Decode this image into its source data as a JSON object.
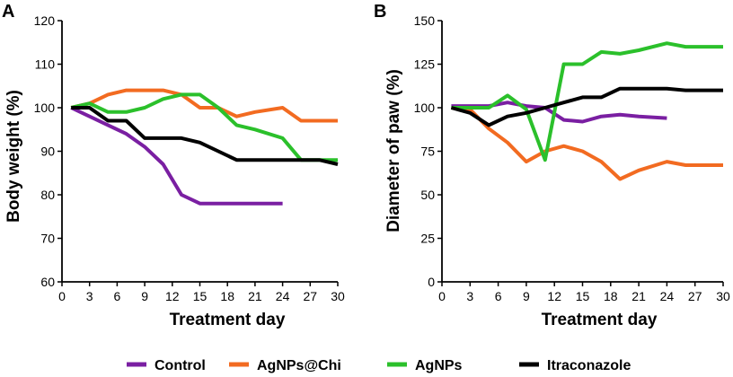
{
  "legend": [
    {
      "name": "Control",
      "color": "#7a1fa2"
    },
    {
      "name": "AgNPs@Chi",
      "color": "#f26b21"
    },
    {
      "name": "AgNPs",
      "color": "#2bc02b"
    },
    {
      "name": "Itraconazole",
      "color": "#000000"
    }
  ],
  "chart_data": [
    {
      "type": "line",
      "panel": "A",
      "xlabel": "Treatment day",
      "ylabel": "Body weight (%)",
      "xlim": [
        0,
        30
      ],
      "ylim": [
        60,
        120
      ],
      "xticks": [
        0,
        3,
        6,
        9,
        12,
        15,
        18,
        21,
        24,
        27,
        30
      ],
      "yticks": [
        60,
        70,
        80,
        90,
        100,
        110,
        120
      ],
      "series": [
        {
          "name": "Control",
          "color": "#7a1fa2",
          "x": [
            1,
            3,
            5,
            7,
            9,
            11,
            13,
            15,
            17,
            19,
            21,
            24
          ],
          "y": [
            100,
            98,
            96,
            94,
            91,
            87,
            80,
            78,
            78,
            78,
            78,
            78
          ]
        },
        {
          "name": "AgNPs@Chi",
          "color": "#f26b21",
          "x": [
            1,
            3,
            5,
            7,
            9,
            11,
            13,
            15,
            17,
            19,
            21,
            24,
            26,
            28,
            30
          ],
          "y": [
            100,
            101,
            103,
            104,
            104,
            104,
            103,
            100,
            100,
            98,
            99,
            100,
            97,
            97,
            97
          ]
        },
        {
          "name": "AgNPs",
          "color": "#2bc02b",
          "x": [
            1,
            3,
            5,
            7,
            9,
            11,
            13,
            15,
            17,
            19,
            21,
            24,
            26,
            28,
            30
          ],
          "y": [
            100,
            101,
            99,
            99,
            100,
            102,
            103,
            103,
            100,
            96,
            95,
            93,
            88,
            88,
            88
          ]
        },
        {
          "name": "Itraconazole",
          "color": "#000000",
          "x": [
            1,
            3,
            5,
            7,
            9,
            11,
            13,
            15,
            17,
            19,
            21,
            24,
            26,
            28,
            30
          ],
          "y": [
            100,
            100,
            97,
            97,
            93,
            93,
            93,
            92,
            90,
            88,
            88,
            88,
            88,
            88,
            87
          ]
        }
      ]
    },
    {
      "type": "line",
      "panel": "B",
      "xlabel": "Treatment day",
      "ylabel": "Diameter of paw (%)",
      "xlim": [
        0,
        30
      ],
      "ylim": [
        0,
        150
      ],
      "xticks": [
        0,
        3,
        6,
        9,
        12,
        15,
        18,
        21,
        24,
        27,
        30
      ],
      "yticks": [
        0,
        25,
        50,
        75,
        100,
        125,
        150
      ],
      "series": [
        {
          "name": "Control",
          "color": "#7a1fa2",
          "x": [
            1,
            3,
            5,
            7,
            9,
            11,
            13,
            15,
            17,
            19,
            21,
            24
          ],
          "y": [
            101,
            101,
            101,
            103,
            101,
            100,
            93,
            92,
            95,
            96,
            95,
            94
          ]
        },
        {
          "name": "AgNPs@Chi",
          "color": "#f26b21",
          "x": [
            1,
            3,
            5,
            7,
            9,
            11,
            13,
            15,
            17,
            19,
            21,
            24,
            26,
            28,
            30
          ],
          "y": [
            100,
            99,
            88,
            80,
            69,
            75,
            78,
            75,
            69,
            59,
            64,
            69,
            67,
            67,
            67
          ]
        },
        {
          "name": "AgNPs",
          "color": "#2bc02b",
          "x": [
            1,
            3,
            5,
            7,
            9,
            11,
            13,
            15,
            17,
            19,
            21,
            24,
            26,
            28,
            30
          ],
          "y": [
            100,
            100,
            100,
            107,
            99,
            70,
            125,
            125,
            132,
            131,
            133,
            137,
            135,
            135,
            135
          ]
        },
        {
          "name": "Itraconazole",
          "color": "#000000",
          "x": [
            1,
            3,
            5,
            7,
            9,
            11,
            13,
            15,
            17,
            19,
            21,
            24,
            26,
            28,
            30
          ],
          "y": [
            100,
            97,
            90,
            95,
            97,
            100,
            103,
            106,
            106,
            111,
            111,
            111,
            110,
            110,
            110
          ]
        }
      ]
    }
  ]
}
